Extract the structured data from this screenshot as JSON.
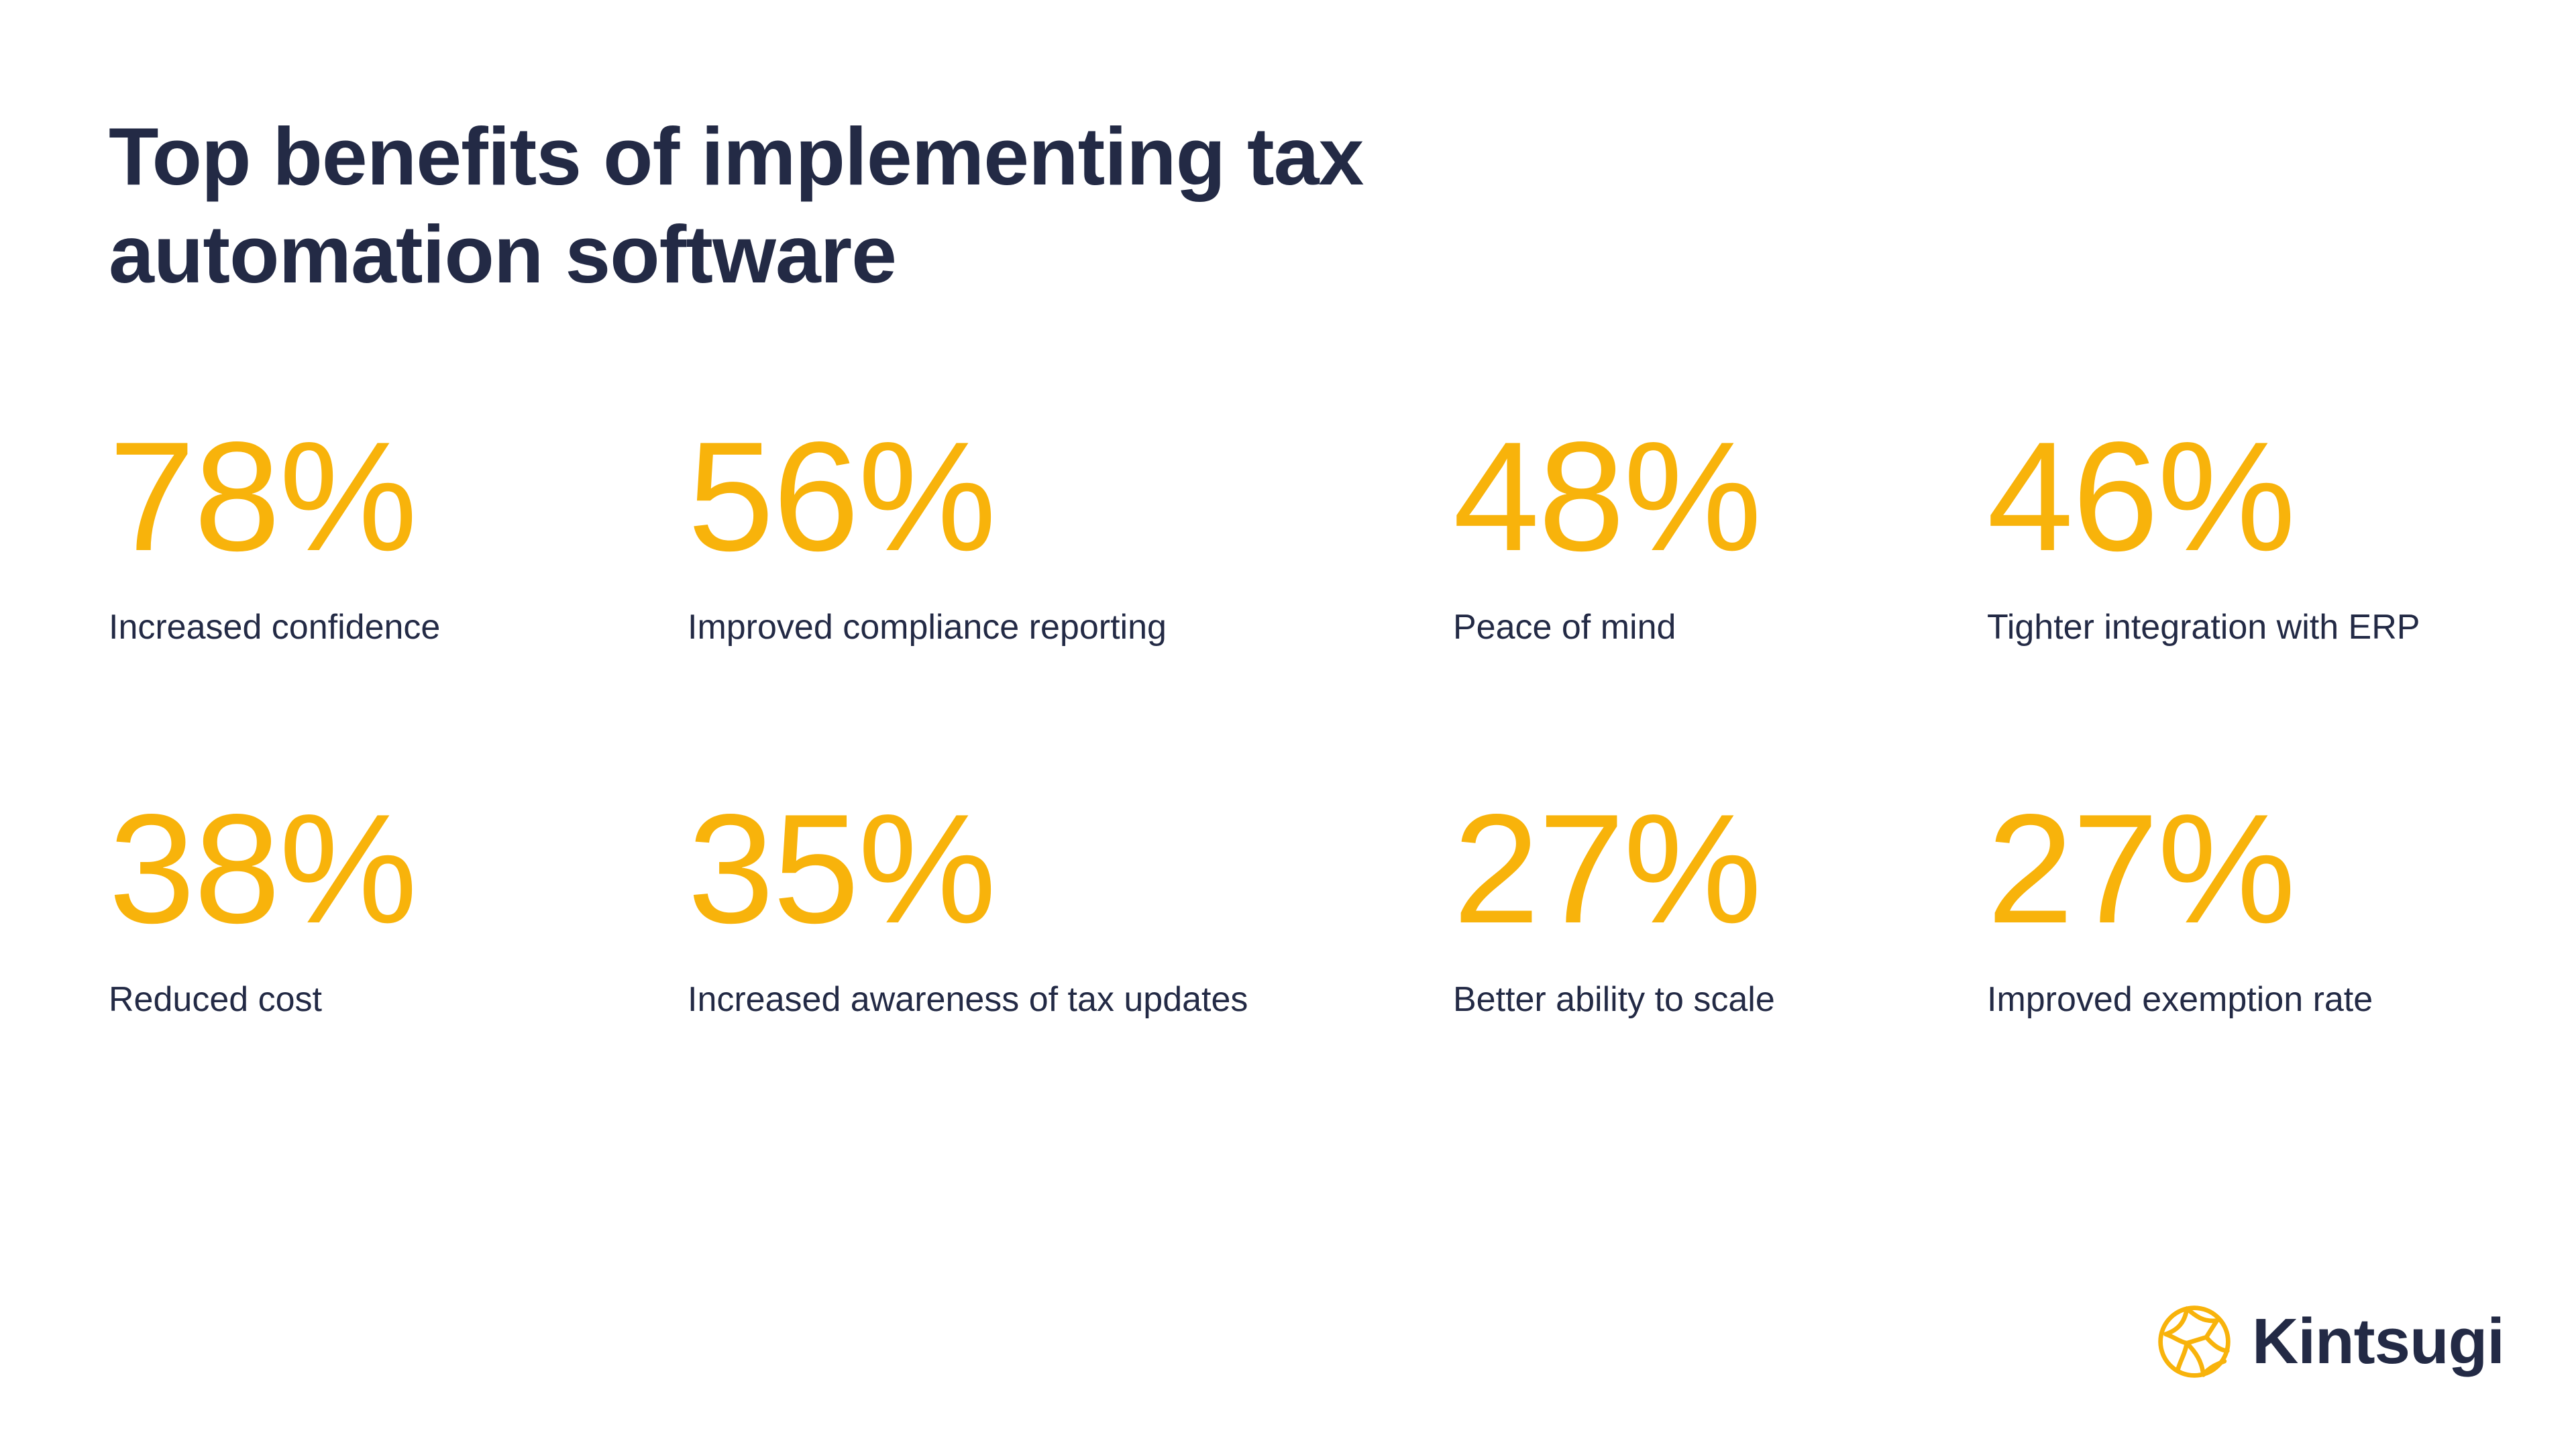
{
  "title": {
    "line1": "Top benefits of implementing tax",
    "line2": "automation software"
  },
  "stats": [
    {
      "value": "78%",
      "label": "Increased confidence"
    },
    {
      "value": "56%",
      "label": "Improved compliance reporting"
    },
    {
      "value": "48%",
      "label": "Peace of mind"
    },
    {
      "value": "46%",
      "label": "Tighter integration with ERP"
    },
    {
      "value": "38%",
      "label": "Reduced cost"
    },
    {
      "value": "35%",
      "label": "Increased awareness of tax updates"
    },
    {
      "value": "27%",
      "label": "Better ability to scale"
    },
    {
      "value": "27%",
      "label": "Improved exemption rate"
    }
  ],
  "brand": {
    "name": "Kintsugi",
    "logo_icon": "kintsugi-globe-icon"
  },
  "colors": {
    "accent": "#f8b30b",
    "text": "#232a45",
    "background": "#ffffff"
  }
}
